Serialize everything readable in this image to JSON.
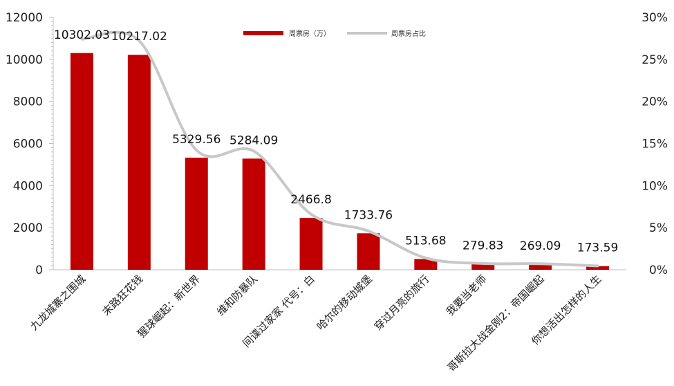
{
  "chart_data": {
    "type": "bar",
    "categories": [
      "九龙城寨之围城",
      "末路狂花钱",
      "猩球崛起：新世界",
      "维和防暴队",
      "间谍过家家 代号：白",
      "哈尔的移动城堡",
      "穿过月亮的旅行",
      "我要当老师",
      "哥斯拉大战金刚2：帝国崛起",
      "你想活出怎样的人生"
    ],
    "series": [
      {
        "name": "周票房（万）",
        "type": "bar",
        "axis": "left",
        "color": "#C00000",
        "values": [
          10302.03,
          10217.02,
          5329.56,
          5284.09,
          2466.8,
          1733.76,
          513.68,
          279.83,
          269.09,
          173.59
        ],
        "labels": [
          "10302.03",
          "10217.02",
          "5329.56",
          "5284.09",
          "2466.8",
          "1733.76",
          "513.68",
          "279.83",
          "269.09",
          "173.59"
        ]
      },
      {
        "name": "周票房占比",
        "type": "line",
        "smooth": true,
        "axis": "right",
        "color": "#C8C8C8",
        "values": [
          0.274,
          0.272,
          0.142,
          0.141,
          0.066,
          0.046,
          0.014,
          0.0075,
          0.0072,
          0.0046
        ]
      }
    ],
    "y_left": {
      "range": [
        0,
        12000
      ],
      "ticks": [
        "0",
        "2000",
        "4000",
        "6000",
        "8000",
        "10000",
        "12000"
      ]
    },
    "y_right": {
      "range": [
        0,
        0.3
      ],
      "ticks": [
        "0%",
        "5%",
        "10%",
        "15%",
        "20%",
        "25%",
        "30%"
      ]
    },
    "grid": false,
    "legend": "top-center"
  }
}
